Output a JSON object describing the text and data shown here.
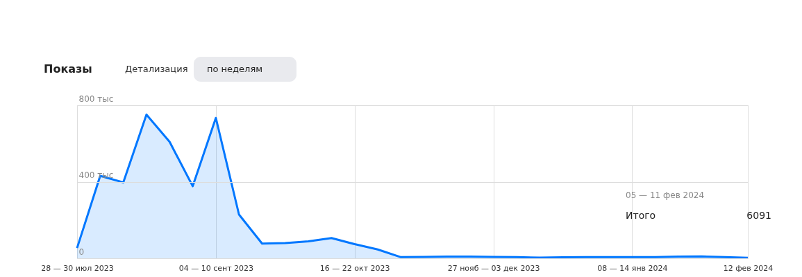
{
  "chart_data": {
    "type": "area",
    "title": "Показы",
    "annotations": [
      "Детализация",
      "по неделям",
      "05 — 11 фев 2024",
      "Итого",
      "6091"
    ],
    "categories": [
      "28 — 30 июл 2023",
      null,
      null,
      null,
      null,
      null,
      "04 — 10 сент 2023",
      null,
      null,
      null,
      null,
      null,
      "16 — 22 окт 2023",
      null,
      null,
      null,
      null,
      null,
      "27 нояб — 03 дек 2023",
      null,
      null,
      null,
      null,
      null,
      "08 — 14 янв 2024",
      null,
      null,
      null,
      null,
      "12 фев 2024"
    ],
    "series": [
      {
        "color": "#0077ff",
        "values": [
          54,
          431,
          397,
          751,
          609,
          377,
          734,
          229,
          77,
          80,
          89,
          106,
          74,
          46,
          6,
          7,
          9,
          9,
          7,
          6,
          4,
          5,
          6,
          6,
          6,
          6,
          9,
          10,
          6.091,
          3
        ]
      }
    ],
    "ylim": [
      0,
      800
    ],
    "yticks": [
      0,
      {
        "value": 400,
        "label": "400 тыс"
      },
      {
        "value": 800,
        "label": "800 тыс"
      }
    ],
    "grid": true,
    "marker": "none",
    "line_style": "solid"
  }
}
